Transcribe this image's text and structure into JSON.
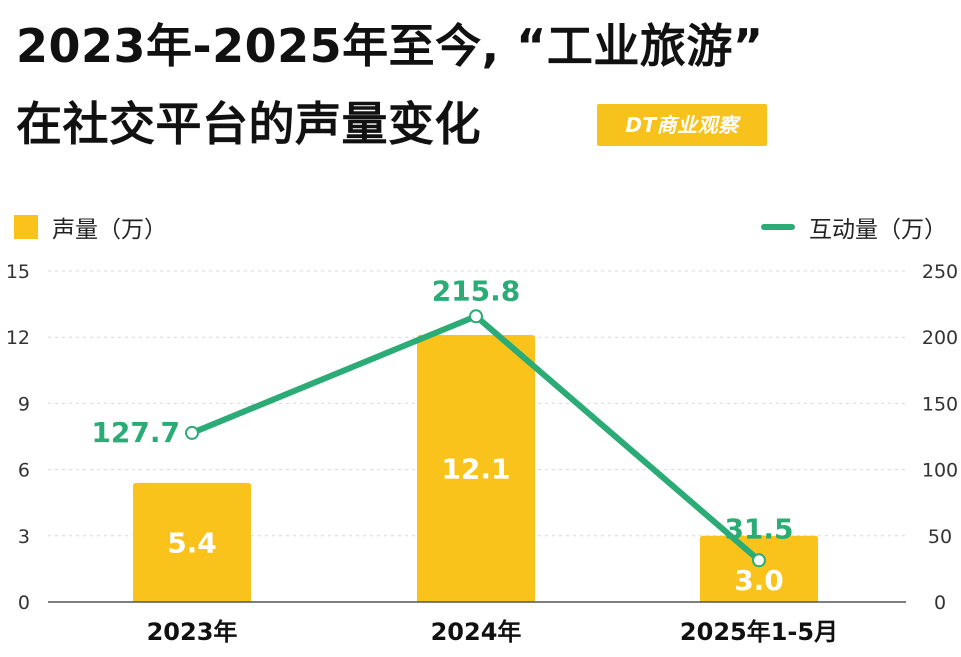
{
  "title": {
    "line1": "2023年-2025年至今, “工业旅游”",
    "line2": "在社交平台的声量变化"
  },
  "logo": {
    "text": "DT商业观察"
  },
  "legend": {
    "bar_label": "声量（万）",
    "line_label": "互动量（万）"
  },
  "colors": {
    "bar": "#f9c31c",
    "line": "#2bab75",
    "bar_label": "#ffffff",
    "grid": "#d9d9d9"
  },
  "chart_data": {
    "type": "bar",
    "categories": [
      "2023年",
      "2024年",
      "2025年1-5月"
    ],
    "series": [
      {
        "name": "声量（万）",
        "type": "bar",
        "axis": "left",
        "values": [
          5.4,
          12.1,
          3.0
        ]
      },
      {
        "name": "互动量（万）",
        "type": "line",
        "axis": "right",
        "values": [
          127.7,
          215.8,
          31.5
        ]
      }
    ],
    "y_left": {
      "range": [
        0,
        15
      ],
      "ticks": [
        "0",
        "3",
        "6",
        "9",
        "12",
        "15"
      ]
    },
    "y_right": {
      "range": [
        0,
        250
      ],
      "ticks": [
        "0",
        "50",
        "100",
        "150",
        "200",
        "250"
      ]
    },
    "grid": true,
    "legend_position": "top"
  }
}
